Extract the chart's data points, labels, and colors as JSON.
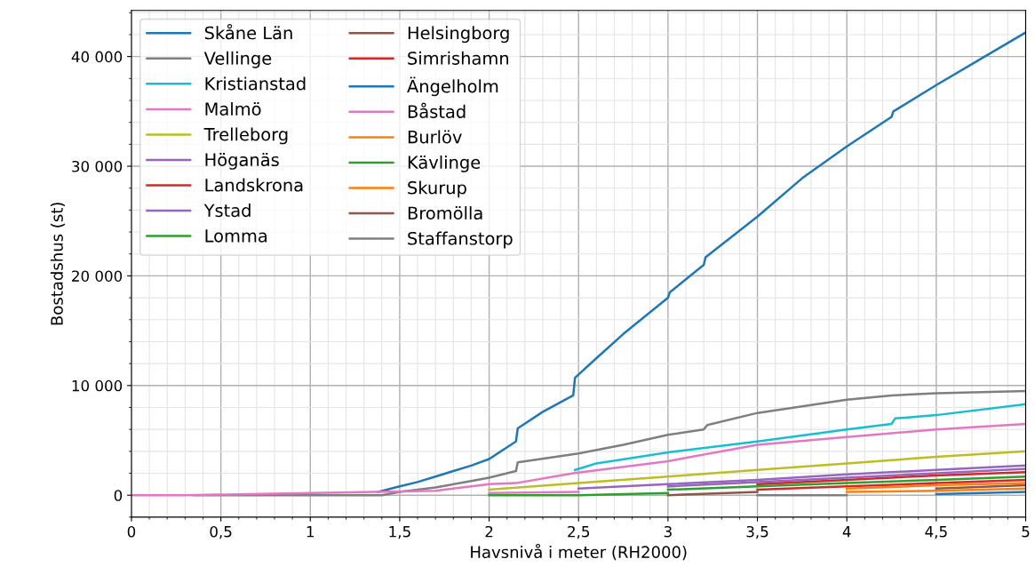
{
  "chart_data": {
    "type": "line",
    "xlabel": "Havsnivå i meter (RH2000)",
    "ylabel": "Bostadshus (st)",
    "xlim": [
      0,
      5
    ],
    "ylim": [
      -2000,
      44200
    ],
    "xticks": [
      0,
      {
        "value": 0.5,
        "label": "0,5"
      },
      1,
      {
        "value": 1.5,
        "label": "1,5"
      },
      2,
      {
        "value": 2.5,
        "label": "2,5"
      },
      3,
      {
        "value": 3.5,
        "label": "3,5"
      },
      4,
      {
        "value": 4.5,
        "label": "4,5"
      },
      5
    ],
    "yticks": [
      0,
      {
        "value": 10000,
        "label": "10 000"
      },
      {
        "value": 20000,
        "label": "20 000"
      },
      {
        "value": 30000,
        "label": "30 000"
      },
      {
        "value": 40000,
        "label": "40 000"
      }
    ],
    "grid": true,
    "legend": "top left",
    "line_style": "solid",
    "x": [
      2.0,
      2.5,
      3.0,
      3.5,
      4.0,
      4.5,
      5.0
    ],
    "series": [
      {
        "name": "Skåne Län",
        "color": "#1f77b4",
        "x": [
          1.38,
          1.5,
          1.6,
          1.7,
          1.8,
          1.9,
          2.0,
          2.15,
          2.16,
          2.3,
          2.47,
          2.48,
          2.6,
          2.75,
          3.0,
          3.01,
          3.2,
          3.21,
          3.5,
          3.75,
          4.0,
          4.25,
          4.26,
          4.5,
          4.75,
          5.0
        ],
        "values": [
          300,
          800,
          1200,
          1700,
          2200,
          2700,
          3300,
          4900,
          6100,
          7600,
          9100,
          10700,
          12500,
          14700,
          18000,
          18500,
          21000,
          21700,
          25400,
          28900,
          31800,
          34500,
          35000,
          37400,
          39800,
          42200
        ]
      },
      {
        "name": "Vellinge",
        "color": "#7f7f7f",
        "x": [
          0.35,
          1.4,
          1.5,
          1.7,
          1.9,
          2.0,
          2.15,
          2.16,
          2.5,
          2.75,
          3.0,
          3.2,
          3.22,
          3.5,
          4.0,
          4.25,
          4.5,
          5.0
        ],
        "values": [
          0,
          0,
          300,
          700,
          1300,
          1600,
          2200,
          3000,
          3800,
          4600,
          5500,
          6000,
          6400,
          7500,
          8700,
          9100,
          9300,
          9500
        ]
      },
      {
        "name": "Kristianstad",
        "color": "#17becf",
        "x": [
          2.48,
          2.6,
          3.0,
          3.5,
          4.0,
          4.25,
          4.27,
          4.5,
          5.0
        ],
        "values": [
          2300,
          2900,
          3900,
          4900,
          6000,
          6500,
          7000,
          7300,
          8300
        ]
      },
      {
        "name": "Malmö",
        "color": "#e377c2",
        "x": [
          0,
          0.3,
          1.7,
          2.0,
          2.15,
          2.47,
          3.0,
          3.5,
          4.0,
          4.5,
          5.0
        ],
        "values": [
          0,
          0,
          400,
          1000,
          1100,
          2000,
          3100,
          4600,
          5300,
          6000,
          6500
        ]
      },
      {
        "name": "Trelleborg",
        "color": "#bcbd22",
        "values": [
          500,
          1100,
          1700,
          2300,
          2900,
          3500,
          4000
        ]
      },
      {
        "name": "Höganäs",
        "color": "#9467bd",
        "values": [
          null,
          600,
          1000,
          1400,
          1900,
          2300,
          2700
        ]
      },
      {
        "name": "Landskrona",
        "color": "#d62728",
        "values": [
          null,
          null,
          null,
          1000,
          1400,
          1800,
          2100
        ]
      },
      {
        "name": "Ystad",
        "color": "#9467bd",
        "values": [
          null,
          null,
          800,
          1200,
          1600,
          2000,
          2400
        ]
      },
      {
        "name": "Lomma",
        "color": "#2ca02c",
        "values": [
          null,
          null,
          500,
          800,
          1100,
          1400,
          1700
        ]
      },
      {
        "name": "Helsingborg",
        "color": "#8c564b",
        "values": [
          null,
          null,
          null,
          null,
          null,
          600,
          900
        ]
      },
      {
        "name": "Simrishamn",
        "color": "#d62728",
        "values": [
          null,
          null,
          null,
          500,
          800,
          1100,
          1400
        ]
      },
      {
        "name": "Ängelholm",
        "color": "#1f77b4",
        "values": [
          null,
          null,
          null,
          null,
          null,
          100,
          300
        ]
      },
      {
        "name": "Båstad",
        "color": "#e377c2",
        "values": [
          200,
          300,
          null,
          null,
          null,
          null,
          null
        ]
      },
      {
        "name": "Burlöv",
        "color": "#ff7f0e",
        "values": [
          null,
          null,
          null,
          null,
          600,
          900,
          1100
        ]
      },
      {
        "name": "Kävlinge",
        "color": "#2ca02c",
        "values": [
          0,
          0,
          200,
          null,
          null,
          null,
          null
        ]
      },
      {
        "name": "Skurup",
        "color": "#ff7f0e",
        "values": [
          null,
          null,
          null,
          null,
          300,
          400,
          600
        ]
      },
      {
        "name": "Bromölla",
        "color": "#8c564b",
        "values": [
          null,
          null,
          0,
          300,
          null,
          null,
          null
        ]
      },
      {
        "name": "Staffanstorp",
        "color": "#7f7f7f",
        "values": [
          null,
          null,
          null,
          0,
          0,
          null,
          null
        ]
      }
    ]
  }
}
